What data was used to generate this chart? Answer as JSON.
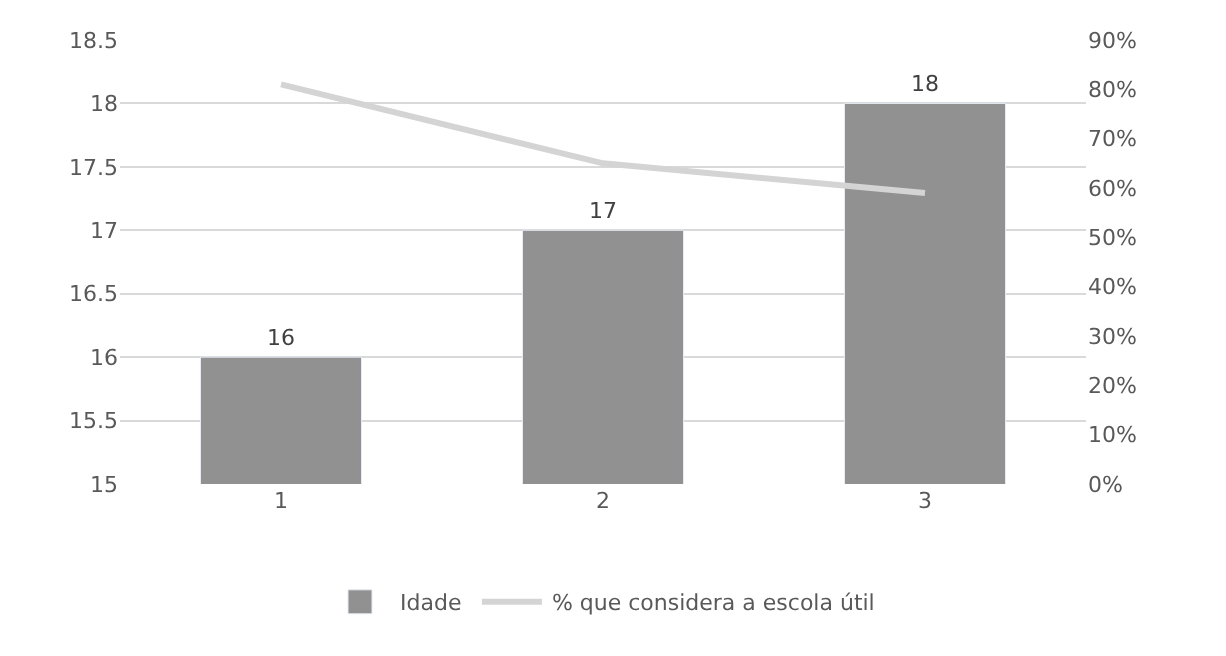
{
  "chart_data": {
    "type": "bar",
    "categories": [
      "1",
      "2",
      "3"
    ],
    "series": [
      {
        "name": "Idade",
        "color": "#919191",
        "values": [
          16,
          17,
          18
        ],
        "value_labels": [
          "16",
          "17",
          "18"
        ]
      },
      {
        "name": "% que considera a escola útil",
        "type": "line",
        "axis": "y2",
        "color": "#d4d4d4",
        "values": [
          81,
          65,
          59
        ]
      }
    ],
    "ylim": [
      15,
      18.5
    ],
    "yticks": [
      15,
      15.5,
      16,
      16.5,
      17,
      17.5,
      18,
      18.5
    ],
    "y2lim": [
      0,
      90
    ],
    "y2ticks": [
      {
        "value": 0,
        "label": "0%"
      },
      {
        "value": 10,
        "label": "10%"
      },
      {
        "value": 20,
        "label": "20%"
      },
      {
        "value": 30,
        "label": "30%"
      },
      {
        "value": 40,
        "label": "40%"
      },
      {
        "value": 50,
        "label": "50%"
      },
      {
        "value": 60,
        "label": "60%"
      },
      {
        "value": 70,
        "label": "70%"
      },
      {
        "value": 80,
        "label": "80%"
      },
      {
        "value": 90,
        "label": "90%"
      }
    ],
    "grid": "y",
    "legend": "bottom",
    "marker": "none",
    "line_style": "solid"
  }
}
